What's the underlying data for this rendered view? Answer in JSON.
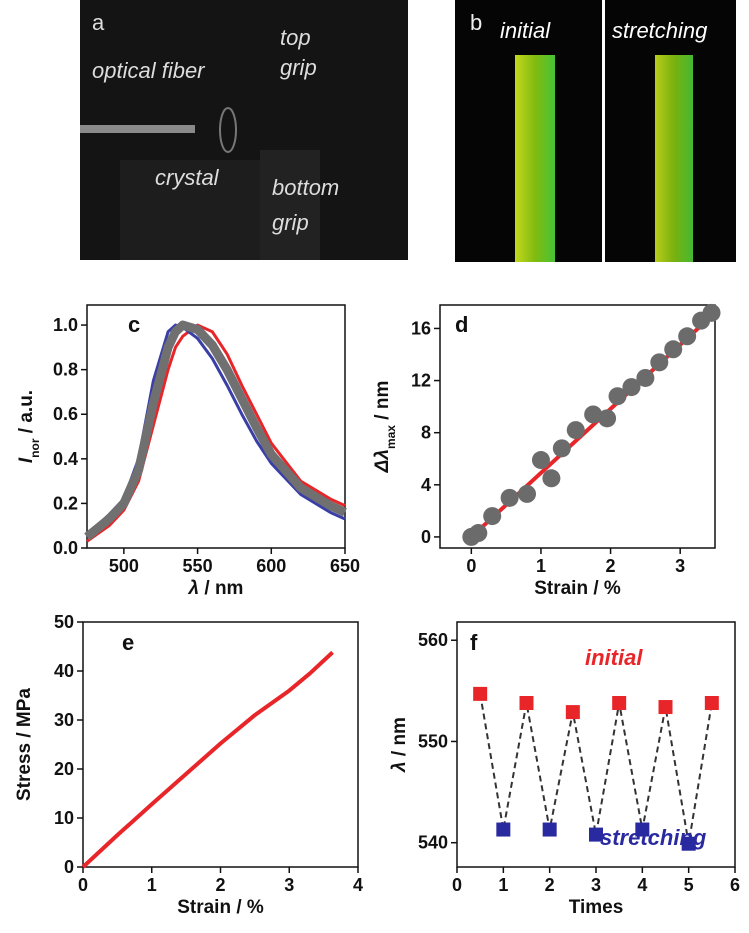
{
  "photos": [
    {
      "label": "a",
      "texts": [
        "optical fiber",
        "top",
        "grip",
        "crystal",
        "bottom",
        "grip"
      ]
    },
    {
      "label": "b",
      "texts": [
        "initial",
        "stretching"
      ]
    }
  ],
  "chart_data": [
    {
      "type": "line",
      "label": "c",
      "x_label": [
        {
          "text": "λ",
          "style": "italic"
        },
        {
          "text": " / nm"
        }
      ],
      "y_label": [
        {
          "text": "I",
          "style": "italic"
        },
        {
          "text": "nor",
          "style": "sub"
        },
        {
          "text": " / a.u."
        }
      ],
      "x": [
        475,
        490,
        500,
        510,
        520,
        530,
        535,
        540,
        550,
        560,
        570,
        580,
        590,
        600,
        620,
        640,
        650
      ],
      "series": [
        {
          "color": "#e8262a",
          "width": 3,
          "values": [
            0.03,
            0.1,
            0.17,
            0.3,
            0.55,
            0.8,
            0.9,
            0.95,
            1.0,
            0.97,
            0.87,
            0.73,
            0.6,
            0.47,
            0.3,
            0.22,
            0.19
          ]
        },
        {
          "color": "#3a3fa8",
          "width": 3,
          "values": [
            0.06,
            0.15,
            0.22,
            0.4,
            0.75,
            0.97,
            1.0,
            0.99,
            0.94,
            0.85,
            0.73,
            0.6,
            0.48,
            0.38,
            0.24,
            0.16,
            0.13
          ]
        },
        {
          "color": "#707070",
          "width": 9,
          "values": [
            0.05,
            0.13,
            0.2,
            0.35,
            0.65,
            0.9,
            0.97,
            1.0,
            0.98,
            0.91,
            0.8,
            0.67,
            0.54,
            0.42,
            0.27,
            0.19,
            0.16
          ]
        }
      ],
      "xlim": [
        475,
        650
      ],
      "xticks": [
        500,
        550,
        600,
        650
      ],
      "ylim": [
        0,
        1.09
      ],
      "yticks": [
        {
          "value": 0,
          "label": "0.0"
        },
        {
          "value": 0.2,
          "label": "0.2"
        },
        {
          "value": 0.4,
          "label": "0.4"
        },
        {
          "value": 0.6,
          "label": "0.6"
        },
        {
          "value": 0.8,
          "label": "0.8"
        },
        {
          "value": 1.0,
          "label": "1.0"
        }
      ]
    },
    {
      "type": "scatter",
      "label": "d",
      "x_label": [
        {
          "text": "Strain / %"
        }
      ],
      "y_label": [
        {
          "text": "Δλ",
          "style": "italic"
        },
        {
          "text": "max",
          "style": "sub"
        },
        {
          "text": " / nm"
        }
      ],
      "series": [
        {
          "color": "#6b6b6b",
          "marker": "circle",
          "x": [
            0,
            0.1,
            0.3,
            0.55,
            0.8,
            1.0,
            1.15,
            1.3,
            1.5,
            1.75,
            1.95,
            2.1,
            2.3,
            2.5,
            2.7,
            2.9,
            3.1,
            3.3,
            3.45
          ],
          "values": [
            0,
            0.3,
            1.6,
            3,
            3.3,
            5.9,
            4.5,
            6.8,
            8.2,
            9.4,
            9.1,
            10.8,
            11.5,
            12.2,
            13.4,
            14.4,
            15.4,
            16.6,
            17.2
          ]
        }
      ],
      "fit_line": {
        "color": "#e8262a",
        "x": [
          0,
          3.5
        ],
        "values": [
          0,
          17.2
        ]
      },
      "xlim": [
        -0.45,
        3.5
      ],
      "xticks": [
        0,
        1,
        2,
        3
      ],
      "ylim": [
        -0.85,
        17.8
      ],
      "yticks": [
        0,
        4,
        8,
        12,
        16
      ]
    },
    {
      "type": "line",
      "label": "e",
      "x_label": [
        {
          "text": "Strain / %"
        }
      ],
      "y_label": [
        {
          "text": "Stress / MPa"
        }
      ],
      "x": [
        0,
        0.5,
        1,
        1.5,
        2,
        2.5,
        3,
        3.3,
        3.63
      ],
      "series": [
        {
          "color": "#e8262a",
          "width": 4,
          "values": [
            0,
            6.5,
            12.8,
            19,
            25.2,
            31,
            36,
            39.5,
            43.8
          ]
        }
      ],
      "xlim": [
        0,
        4
      ],
      "xticks": [
        0,
        1,
        2,
        3,
        4
      ],
      "ylim": [
        0,
        50
      ],
      "yticks": [
        0,
        10,
        20,
        30,
        40,
        50
      ]
    },
    {
      "type": "scatter",
      "label": "f",
      "connect": true,
      "x_label": [
        {
          "text": "Times"
        }
      ],
      "y_label": [
        {
          "text": "λ",
          "style": "italic"
        },
        {
          "text": " / nm"
        }
      ],
      "series": [
        {
          "name": "initial",
          "color": "#e8262a",
          "marker": "square",
          "x": [
            0.5,
            1.5,
            2.5,
            3.5,
            4.5,
            5.5
          ],
          "values": [
            554.7,
            553.8,
            552.9,
            553.8,
            553.4,
            553.8
          ]
        },
        {
          "name": "stretching",
          "color": "#2a2aa0",
          "marker": "square",
          "x": [
            1,
            2,
            3,
            4,
            5
          ],
          "values": [
            541.3,
            541.3,
            540.8,
            541.3,
            539.9
          ]
        }
      ],
      "xlim": [
        0,
        6
      ],
      "xticks": [
        0,
        1,
        2,
        3,
        4,
        5,
        6
      ],
      "ylim": [
        537.6,
        561.8
      ],
      "yticks": [
        540,
        550,
        560
      ]
    }
  ]
}
